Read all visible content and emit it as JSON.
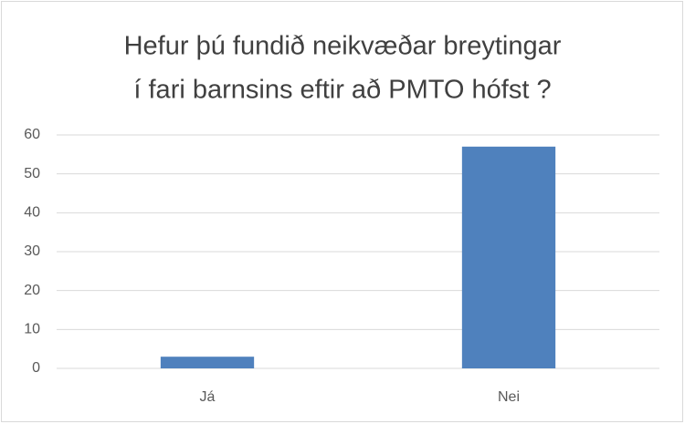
{
  "chart_data": {
    "type": "bar",
    "title": [
      "Hefur þú fundið neikvæðar breytingar",
      "í fari barnsins eftir að PMTO hófst ?"
    ],
    "categories": [
      "Já",
      "Nei"
    ],
    "values": [
      3,
      57
    ],
    "color": "#4f81bd",
    "ylim": [
      0,
      60
    ],
    "yticks": [
      0,
      10,
      20,
      30,
      40,
      50,
      60
    ],
    "grid": true
  }
}
